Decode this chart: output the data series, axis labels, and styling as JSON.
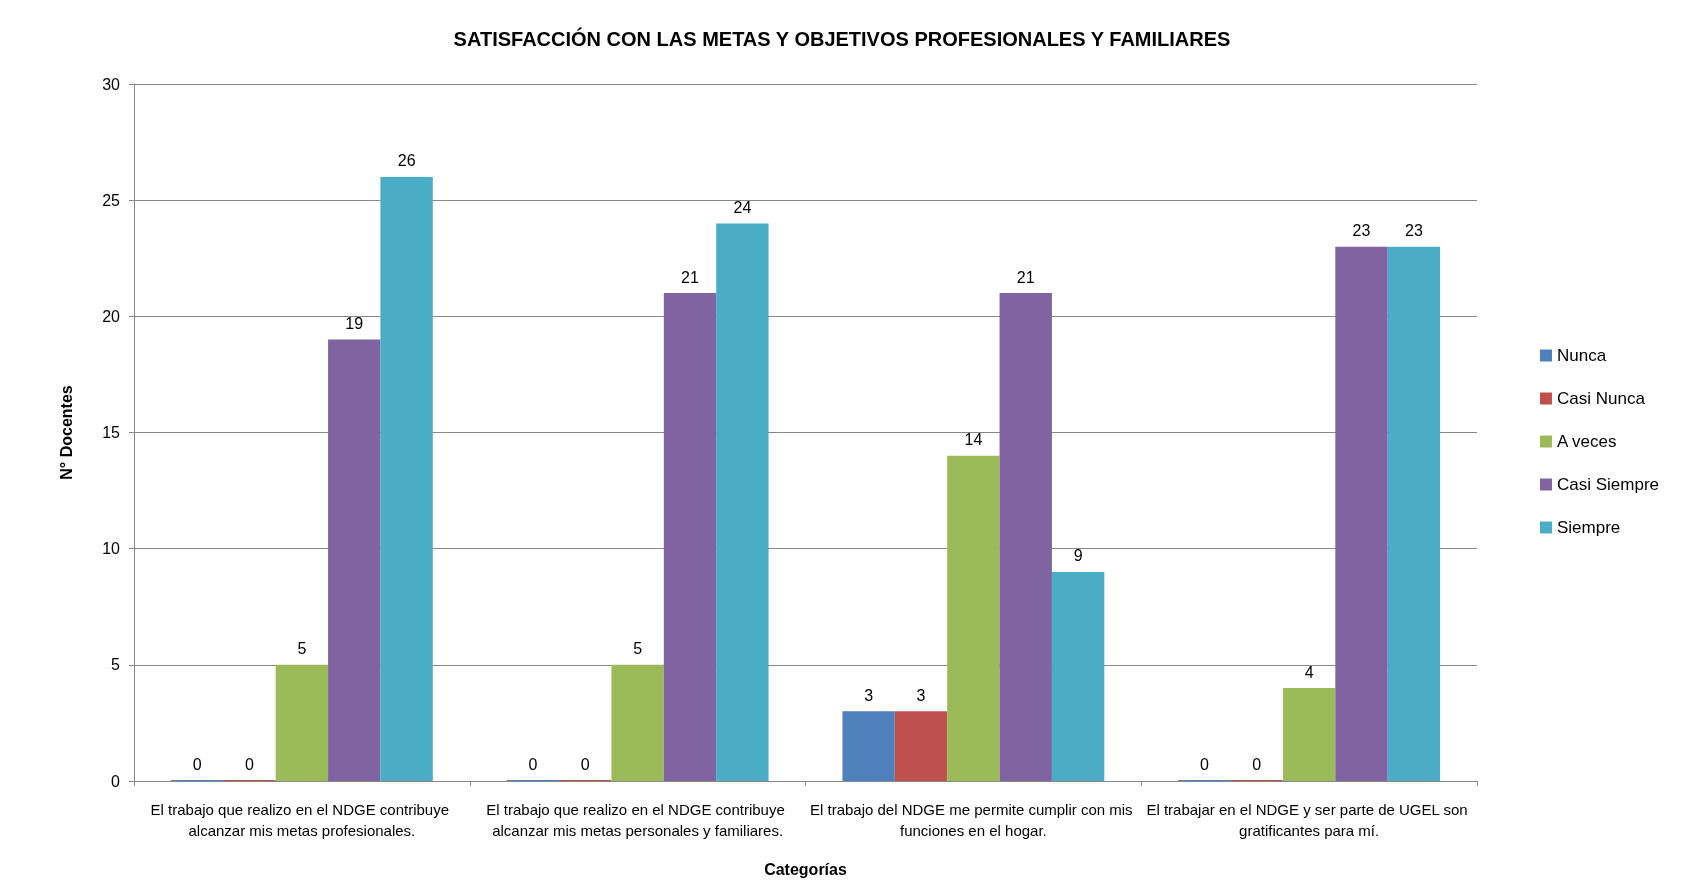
{
  "chart_data": {
    "type": "bar",
    "title": "SATISFACCIÓN CON LAS METAS Y OBJETIVOS PROFESIONALES Y FAMILIARES",
    "xlabel": "Categorías",
    "ylabel": "N° Docentes",
    "categories": [
      "El trabajo que realizo en el NDGE contribuye alcanzar mis metas profesionales.",
      "El trabajo que realizo en el NDGE contribuye alcanzar mis metas personales y familiares.",
      "El trabajo del NDGE me permite cumplir con mis funciones en el hogar.",
      "El trabajar en el NDGE y ser parte de UGEL son gratificantes para mí."
    ],
    "series": [
      {
        "name": "Nunca",
        "color": "#4f81bd",
        "values": [
          0,
          0,
          3,
          0
        ]
      },
      {
        "name": "Casi Nunca",
        "color": "#c0504d",
        "values": [
          0,
          0,
          3,
          0
        ]
      },
      {
        "name": "A veces",
        "color": "#9bbb59",
        "values": [
          5,
          5,
          14,
          4
        ]
      },
      {
        "name": "Casi Siempre",
        "color": "#8064a2",
        "values": [
          19,
          21,
          21,
          23
        ]
      },
      {
        "name": "Siempre",
        "color": "#4bacc6",
        "values": [
          26,
          24,
          9,
          23
        ]
      }
    ],
    "ylim": [
      0,
      30
    ],
    "yticks": [
      0,
      5,
      10,
      15,
      20,
      25,
      30
    ],
    "grid": "y",
    "legend": "right",
    "data_labels": true
  }
}
